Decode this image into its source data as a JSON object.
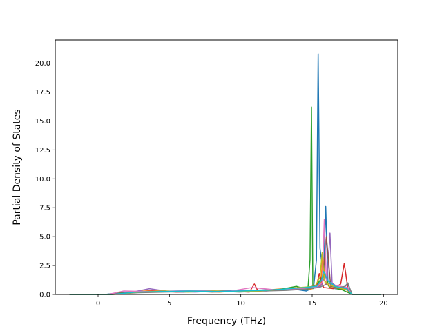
{
  "chart_data": {
    "type": "line",
    "title": "",
    "xlabel": "Frequency (THz)",
    "ylabel": "Partial Density of States",
    "xlim": [
      -3,
      21
    ],
    "ylim": [
      0,
      22
    ],
    "xticks": [
      0,
      5,
      10,
      15,
      20
    ],
    "xtick_labels": [
      "0",
      "5",
      "10",
      "15",
      "20"
    ],
    "yticks": [
      0,
      2.5,
      5,
      7.5,
      10,
      12.5,
      15,
      17.5,
      20
    ],
    "ytick_labels": [
      "0.0",
      "2.5",
      "5.0",
      "7.5",
      "10.0",
      "12.5",
      "15.0",
      "17.5",
      "20.0"
    ],
    "grid": false,
    "legend": "none",
    "colors": [
      "#1f77b4",
      "#ff7f0e",
      "#2ca02c",
      "#d62728",
      "#9467bd",
      "#8c564b",
      "#e377c2",
      "#7f7f7f",
      "#bcbd22",
      "#17becf"
    ],
    "series": [
      {
        "color": "#1f77b4",
        "x": [
          -2,
          0.5,
          1.5,
          3,
          4.5,
          6,
          7.5,
          9,
          10.5,
          12,
          13.5,
          14.6,
          15.1,
          15.3,
          15.42,
          15.55,
          15.8,
          15.95,
          16.1,
          16.6,
          17.2,
          17.5,
          17.8,
          19.8
        ],
        "y": [
          0,
          0,
          0.15,
          0.2,
          0.25,
          0.2,
          0.3,
          0.25,
          0.35,
          0.4,
          0.5,
          0.3,
          0.6,
          3.0,
          20.8,
          4.0,
          1.5,
          7.6,
          1.2,
          0.5,
          0.6,
          0.9,
          0,
          0
        ]
      },
      {
        "color": "#ff7f0e",
        "x": [
          -2,
          0.7,
          2,
          4,
          5.5,
          7,
          8.5,
          10,
          11.5,
          13,
          14.2,
          14.8,
          15.6,
          15.75,
          15.9,
          16.3,
          17.4,
          17.8,
          19.8
        ],
        "y": [
          0,
          0,
          0.2,
          0.35,
          0.25,
          0.3,
          0.2,
          0.3,
          0.35,
          0.5,
          0.6,
          0.4,
          0.8,
          3.5,
          1.0,
          0.6,
          0.4,
          0,
          0
        ]
      },
      {
        "color": "#2ca02c",
        "x": [
          -2,
          0.6,
          2.5,
          4.2,
          6,
          7.8,
          9.5,
          11,
          12.8,
          13.9,
          14.7,
          14.85,
          14.95,
          15.05,
          15.3,
          15.9,
          16.2,
          17.1,
          17.8,
          19.8
        ],
        "y": [
          0,
          0,
          0.25,
          0.2,
          0.3,
          0.25,
          0.35,
          0.3,
          0.45,
          0.7,
          0.4,
          3.0,
          16.2,
          0.5,
          0.8,
          1.8,
          0.6,
          0.4,
          0,
          0
        ]
      },
      {
        "color": "#d62728",
        "x": [
          -2,
          0.8,
          2.2,
          3.8,
          5.5,
          7.2,
          9,
          10.6,
          10.95,
          11.2,
          12.5,
          14,
          15.3,
          15.5,
          15.8,
          16.5,
          17.0,
          17.25,
          17.5,
          17.8,
          19.8
        ],
        "y": [
          0,
          0,
          0.15,
          0.3,
          0.2,
          0.25,
          0.3,
          0.2,
          0.9,
          0.3,
          0.4,
          0.5,
          0.7,
          1.8,
          0.6,
          0.5,
          0.9,
          2.7,
          0.5,
          0,
          0
        ]
      },
      {
        "color": "#9467bd",
        "x": [
          -2,
          0.9,
          2.4,
          3.6,
          5,
          6.8,
          8.4,
          10.2,
          11.8,
          13.3,
          14.5,
          15.6,
          15.9,
          16.05,
          16.25,
          16.4,
          16.8,
          17.5,
          17.8,
          19.8
        ],
        "y": [
          0,
          0,
          0.2,
          0.5,
          0.25,
          0.2,
          0.3,
          0.35,
          0.3,
          0.45,
          0.5,
          0.7,
          1.6,
          1.2,
          5.3,
          1.0,
          0.6,
          0.5,
          0,
          0
        ]
      },
      {
        "color": "#8c564b",
        "x": [
          -2,
          1.0,
          2.6,
          4.4,
          6.2,
          8,
          9.8,
          11.5,
          13.1,
          14.4,
          15.4,
          15.75,
          16.0,
          16.3,
          17.4,
          17.8,
          19.8
        ],
        "y": [
          0,
          0,
          0.2,
          0.25,
          0.3,
          0.2,
          0.25,
          0.35,
          0.4,
          0.55,
          0.8,
          1.4,
          5.0,
          0.7,
          0.5,
          0,
          0
        ]
      },
      {
        "color": "#e377c2",
        "x": [
          -2,
          0.7,
          1.8,
          3.3,
          5.2,
          7.4,
          9.1,
          10.8,
          12.4,
          13.8,
          15.2,
          15.7,
          15.85,
          16.0,
          16.5,
          17.5,
          17.8,
          19.8
        ],
        "y": [
          0,
          0,
          0.3,
          0.25,
          0.3,
          0.35,
          0.25,
          0.6,
          0.4,
          0.5,
          0.6,
          1.0,
          6.5,
          1.0,
          0.8,
          0.6,
          0,
          0
        ]
      },
      {
        "color": "#7f7f7f",
        "x": [
          -2,
          0.9,
          2.8,
          4.7,
          6.5,
          8.2,
          9.9,
          11.6,
          13.2,
          14.4,
          15.5,
          16.2,
          16.6,
          17.3,
          17.5,
          17.8,
          19.8
        ],
        "y": [
          0,
          0,
          0.15,
          0.2,
          0.25,
          0.3,
          0.2,
          0.3,
          0.35,
          0.45,
          0.6,
          1.0,
          0.5,
          0.7,
          1.0,
          0,
          0
        ]
      },
      {
        "color": "#bcbd22",
        "x": [
          -2,
          1.1,
          2.9,
          4.6,
          6.3,
          8.1,
          9.7,
          11.3,
          12.9,
          14.1,
          15.2,
          15.55,
          15.7,
          15.85,
          16.2,
          17.5,
          17.8,
          19.8
        ],
        "y": [
          0,
          0,
          0.2,
          0.3,
          0.2,
          0.3,
          0.25,
          0.3,
          0.45,
          0.6,
          0.7,
          1.5,
          3.6,
          1.2,
          0.8,
          0.4,
          0,
          0
        ]
      },
      {
        "color": "#17becf",
        "x": [
          -2,
          1.0,
          2.7,
          4.5,
          6.4,
          8.3,
          10.0,
          11.7,
          13.4,
          14.5,
          15.3,
          15.65,
          15.8,
          16.1,
          16.6,
          17.4,
          17.8,
          19.8
        ],
        "y": [
          0,
          0,
          0.2,
          0.25,
          0.3,
          0.25,
          0.3,
          0.35,
          0.5,
          0.6,
          0.7,
          1.2,
          2.0,
          1.2,
          0.7,
          0.5,
          0,
          0
        ]
      }
    ]
  }
}
